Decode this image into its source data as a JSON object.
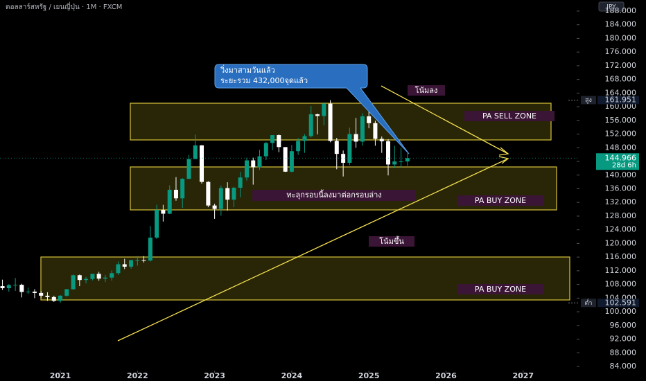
{
  "chart_data": {
    "type": "candlestick",
    "title": "ดอลลาร์สหรัฐ / เยนญี่ปุ่น · 1M · FXCM",
    "currency": "JPY",
    "up_color": "#089981",
    "down_color": "#ffffff",
    "grid": false,
    "xlim": [
      2020.218,
      2027.676
    ],
    "xticks": [
      2021,
      2022,
      2023,
      2024,
      2025,
      2026,
      2027
    ],
    "ylim": [
      82.78,
      191.24
    ],
    "yticks": [
      {
        "value": 84,
        "label": "84.000"
      },
      {
        "value": 88,
        "label": "88.000"
      },
      {
        "value": 92,
        "label": "92.000"
      },
      {
        "value": 96,
        "label": "96.000"
      },
      {
        "value": 100,
        "label": "100.000"
      },
      {
        "value": 104,
        "label": "104.000"
      },
      {
        "value": 108,
        "label": "108.000"
      },
      {
        "value": 112,
        "label": "112.000"
      },
      {
        "value": 116,
        "label": "116.000"
      },
      {
        "value": 120,
        "label": "120.000"
      },
      {
        "value": 124,
        "label": "124.000"
      },
      {
        "value": 128,
        "label": "128.000"
      },
      {
        "value": 132,
        "label": "132.000"
      },
      {
        "value": 136,
        "label": "136.000"
      },
      {
        "value": 140,
        "label": "140.000"
      },
      {
        "value": 144,
        "label": "144.000"
      },
      {
        "value": 148,
        "label": "148.000"
      },
      {
        "value": 152,
        "label": "152.000"
      },
      {
        "value": 156,
        "label": "156.000"
      },
      {
        "value": 160,
        "label": "160.000"
      },
      {
        "value": 164,
        "label": "164.000"
      },
      {
        "value": 168,
        "label": "168.000"
      },
      {
        "value": 172,
        "label": "172.000"
      },
      {
        "value": 176,
        "label": "176.000"
      },
      {
        "value": 180,
        "label": "180.000"
      },
      {
        "value": 184,
        "label": "184.000"
      },
      {
        "value": 188,
        "label": "188.000"
      }
    ],
    "x": [
      2020.25,
      2020.333,
      2020.417,
      2020.5,
      2020.583,
      2020.667,
      2020.75,
      2020.833,
      2020.917,
      2021.0,
      2021.083,
      2021.167,
      2021.25,
      2021.333,
      2021.417,
      2021.5,
      2021.583,
      2021.667,
      2021.75,
      2021.833,
      2021.917,
      2022.0,
      2022.083,
      2022.167,
      2022.25,
      2022.333,
      2022.417,
      2022.5,
      2022.583,
      2022.667,
      2022.75,
      2022.833,
      2022.917,
      2023.0,
      2023.083,
      2023.167,
      2023.25,
      2023.333,
      2023.417,
      2023.5,
      2023.583,
      2023.667,
      2023.75,
      2023.833,
      2023.917,
      2024.0,
      2024.083,
      2024.167,
      2024.25,
      2024.333,
      2024.417,
      2024.5,
      2024.583,
      2024.667,
      2024.75,
      2024.833,
      2024.917,
      2025.0,
      2025.083,
      2025.167,
      2025.25,
      2025.333,
      2025.417,
      2025.5
    ],
    "open": [
      107.5,
      106.9,
      107.8,
      107.9,
      105.8,
      105.9,
      105.5,
      104.7,
      104.3,
      103.2,
      104.7,
      106.6,
      110.7,
      109.3,
      109.6,
      111.1,
      109.7,
      110.0,
      111.3,
      113.9,
      113.2,
      115.1,
      115.1,
      115.0,
      121.7,
      129.8,
      128.7,
      135.7,
      133.2,
      138.9,
      144.7,
      148.7,
      138.0,
      131.1,
      130.1,
      136.2,
      132.8,
      136.3,
      139.3,
      144.3,
      142.3,
      145.5,
      149.4,
      151.7,
      148.2,
      141.0,
      147.0,
      150.0,
      151.4,
      157.8,
      157.3,
      160.9,
      150.0,
      146.2,
      143.6,
      152.0,
      149.8,
      157.2,
      155.2,
      150.6,
      149.9,
      143.1,
      144.0,
      144.0
    ],
    "high": [
      109.4,
      108.1,
      109.9,
      108.2,
      107.1,
      106.6,
      106.1,
      105.7,
      104.7,
      104.9,
      106.7,
      110.9,
      110.9,
      110.2,
      111.1,
      111.7,
      110.8,
      112.1,
      114.7,
      115.5,
      115.2,
      116.3,
      116.3,
      125.1,
      131.3,
      131.3,
      137.0,
      139.4,
      139.1,
      145.9,
      151.9,
      148.8,
      138.2,
      131.6,
      136.9,
      137.9,
      136.6,
      140.9,
      145.1,
      145.1,
      147.4,
      149.7,
      151.7,
      151.9,
      148.2,
      148.8,
      150.9,
      151.97,
      160.2,
      157.99,
      161.3,
      161.951,
      150.9,
      147.2,
      153.9,
      156.7,
      158.1,
      158.9,
      155.9,
      151.3,
      150.5,
      148.6,
      148.0,
      146.4
    ],
    "low": [
      106.4,
      105.9,
      106.1,
      104.2,
      105.2,
      104.0,
      104.0,
      103.2,
      102.9,
      102.591,
      104.4,
      106.4,
      107.5,
      108.3,
      109.2,
      109.1,
      108.7,
      109.1,
      110.8,
      112.5,
      112.6,
      113.5,
      114.4,
      114.7,
      121.3,
      126.4,
      128.6,
      132.5,
      130.4,
      138.9,
      144.7,
      137.5,
      130.6,
      127.2,
      128.1,
      129.6,
      130.6,
      133.5,
      138.4,
      137.2,
      141.5,
      144.4,
      147.3,
      146.7,
      140.9,
      140.8,
      145.9,
      146.5,
      151.0,
      151.9,
      154.6,
      149.6,
      141.7,
      139.6,
      142.9,
      148.0,
      148.6,
      153.7,
      148.6,
      146.5,
      139.9,
      142.1,
      142.1,
      142.7
    ],
    "close": [
      106.9,
      107.8,
      107.9,
      105.8,
      105.9,
      105.5,
      104.7,
      104.3,
      103.2,
      104.7,
      106.6,
      110.7,
      109.3,
      109.6,
      111.1,
      109.7,
      110.0,
      111.3,
      113.9,
      113.2,
      115.1,
      115.1,
      115.0,
      121.7,
      129.8,
      128.7,
      135.7,
      133.2,
      138.9,
      144.7,
      148.7,
      138.0,
      131.1,
      130.1,
      136.2,
      132.8,
      136.3,
      139.3,
      144.3,
      142.3,
      145.5,
      149.4,
      151.7,
      148.2,
      141.0,
      147.0,
      150.0,
      151.4,
      157.8,
      157.3,
      160.9,
      150.0,
      146.2,
      143.6,
      152.0,
      149.8,
      157.2,
      155.2,
      150.6,
      149.9,
      143.1,
      144.0,
      144.0,
      144.966
    ],
    "high_marker": {
      "name": "สูง",
      "value": 161.951,
      "label": "161.951"
    },
    "low_marker": {
      "name": "ต่ำ",
      "value": 102.591,
      "label": "102.591"
    },
    "last_price": {
      "value": 144.966,
      "label": "144.966",
      "countdown": "28d 6h"
    },
    "annotations": {
      "callout": [
        "วิ่งมาสามวันแล้ว",
        "ระยะรวม 432,000จุดแล้ว"
      ],
      "down_trend": "โน้มลง",
      "up_trend": "โน้มขึ้น",
      "sell_zone": "PA SELL ZONE",
      "buy_zone_upper": "PA BUY ZONE",
      "buy_zone_lower": "PA BUY ZONE",
      "breakout_note": "ทะลุกรอบนี้ลงมาต่อกรอบล่าง"
    }
  }
}
